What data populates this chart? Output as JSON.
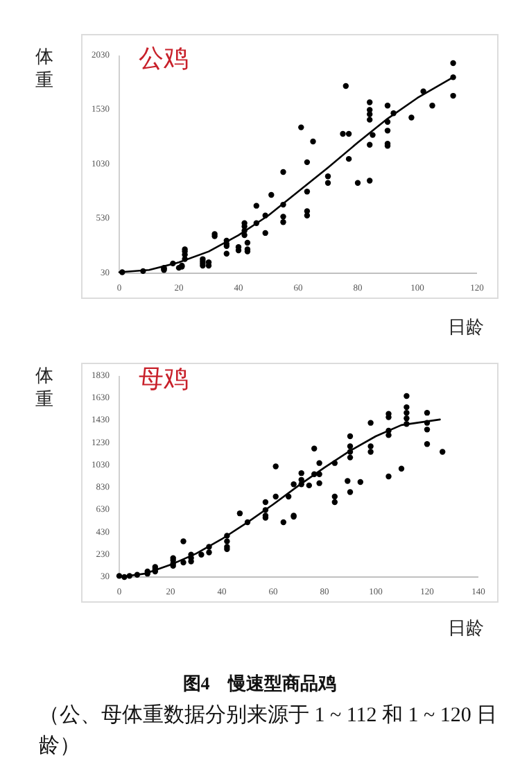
{
  "chart_data": [
    {
      "type": "scatter",
      "title": "公鸡",
      "xlabel": "日龄",
      "ylabel": "体重",
      "xlim": [
        0,
        120
      ],
      "xticks": [
        0,
        20,
        40,
        60,
        80,
        100,
        120
      ],
      "ylim": [
        30,
        2030
      ],
      "yticks": [
        30,
        530,
        1030,
        1530,
        2030
      ],
      "grid": false,
      "series": [
        {
          "marker": "circle",
          "color": "#000000",
          "x": [
            1,
            8,
            15,
            15,
            15,
            18,
            20,
            21,
            21,
            22,
            22,
            22,
            22,
            28,
            28,
            28,
            28,
            30,
            30,
            32,
            32,
            36,
            36,
            36,
            36,
            40,
            40,
            42,
            42,
            42,
            42,
            43,
            43,
            43,
            46,
            46,
            49,
            49,
            51,
            55,
            55,
            55,
            55,
            61,
            63,
            63,
            63,
            63,
            65,
            70,
            70,
            75,
            76,
            77,
            77,
            80,
            84,
            84,
            84,
            84,
            84,
            84,
            85,
            90,
            90,
            90,
            90,
            90,
            92,
            98,
            102,
            105,
            112,
            112,
            112
          ],
          "values": [
            40,
            50,
            80,
            70,
            60,
            120,
            80,
            100,
            90,
            250,
            230,
            200,
            160,
            160,
            140,
            120,
            100,
            130,
            100,
            390,
            370,
            330,
            300,
            280,
            210,
            270,
            240,
            490,
            460,
            420,
            380,
            310,
            250,
            230,
            650,
            490,
            400,
            560,
            750,
            960,
            660,
            550,
            500,
            1370,
            1050,
            780,
            600,
            560,
            1240,
            920,
            860,
            1310,
            1750,
            1310,
            1080,
            860,
            1600,
            1530,
            1490,
            1440,
            1210,
            880,
            1300,
            1570,
            1420,
            1340,
            1220,
            1200,
            1500,
            1460,
            1700,
            1570,
            1960,
            1830,
            1660
          ]
        },
        {
          "type": "line",
          "color": "#000000",
          "line_style": "solid",
          "x": [
            0,
            10,
            20,
            30,
            40,
            50,
            60,
            70,
            80,
            90,
            100,
            112
          ],
          "values": [
            40,
            60,
            130,
            230,
            380,
            560,
            780,
            1000,
            1230,
            1450,
            1640,
            1830
          ]
        }
      ]
    },
    {
      "type": "scatter",
      "title": "母鸡",
      "xlabel": "日龄",
      "ylabel": "体重",
      "xlim": [
        0,
        140
      ],
      "xticks": [
        0,
        20,
        40,
        60,
        80,
        100,
        120,
        140
      ],
      "ylim": [
        30,
        1830
      ],
      "yticks": [
        30,
        230,
        430,
        630,
        830,
        1030,
        1230,
        1430,
        1630,
        1830
      ],
      "grid": false,
      "annotations": [
        "图4　慢速型商品鸡",
        "（公、母体重数据分别来源于 1 ~ 112 和 1 ~ 120 日龄）"
      ],
      "series": [
        {
          "marker": "circle",
          "color": "#000000",
          "x": [
            0,
            2,
            4,
            7,
            11,
            11,
            14,
            14,
            14,
            21,
            21,
            21,
            21,
            25,
            25,
            28,
            28,
            28,
            32,
            35,
            35,
            42,
            42,
            42,
            42,
            47,
            50,
            57,
            57,
            57,
            57,
            61,
            61,
            64,
            66,
            68,
            68,
            68,
            71,
            71,
            71,
            74,
            76,
            76,
            78,
            78,
            78,
            84,
            84,
            84,
            89,
            90,
            90,
            90,
            90,
            90,
            94,
            98,
            98,
            98,
            105,
            105,
            105,
            105,
            105,
            110,
            112,
            112,
            112,
            112,
            112,
            120,
            120,
            120,
            120,
            126
          ],
          "values": [
            40,
            30,
            40,
            50,
            80,
            60,
            120,
            100,
            80,
            200,
            180,
            150,
            130,
            350,
            160,
            230,
            200,
            170,
            230,
            300,
            250,
            400,
            350,
            300,
            280,
            600,
            520,
            700,
            630,
            580,
            560,
            1020,
            750,
            520,
            750,
            860,
            580,
            570,
            960,
            900,
            860,
            850,
            1180,
            950,
            1050,
            950,
            870,
            1050,
            750,
            700,
            890,
            790,
            1290,
            1200,
            1150,
            1100,
            880,
            1410,
            1200,
            1150,
            1490,
            1460,
            1340,
            1300,
            930,
            1000,
            1650,
            1550,
            1500,
            1450,
            1400,
            1500,
            1410,
            1350,
            1220,
            1150
          ]
        },
        {
          "type": "line",
          "color": "#000000",
          "line_style": "solid",
          "x": [
            0,
            10,
            20,
            30,
            40,
            50,
            60,
            70,
            80,
            90,
            100,
            110,
            125
          ],
          "values": [
            30,
            60,
            140,
            240,
            370,
            520,
            680,
            850,
            1010,
            1160,
            1290,
            1390,
            1440
          ]
        }
      ]
    }
  ]
}
